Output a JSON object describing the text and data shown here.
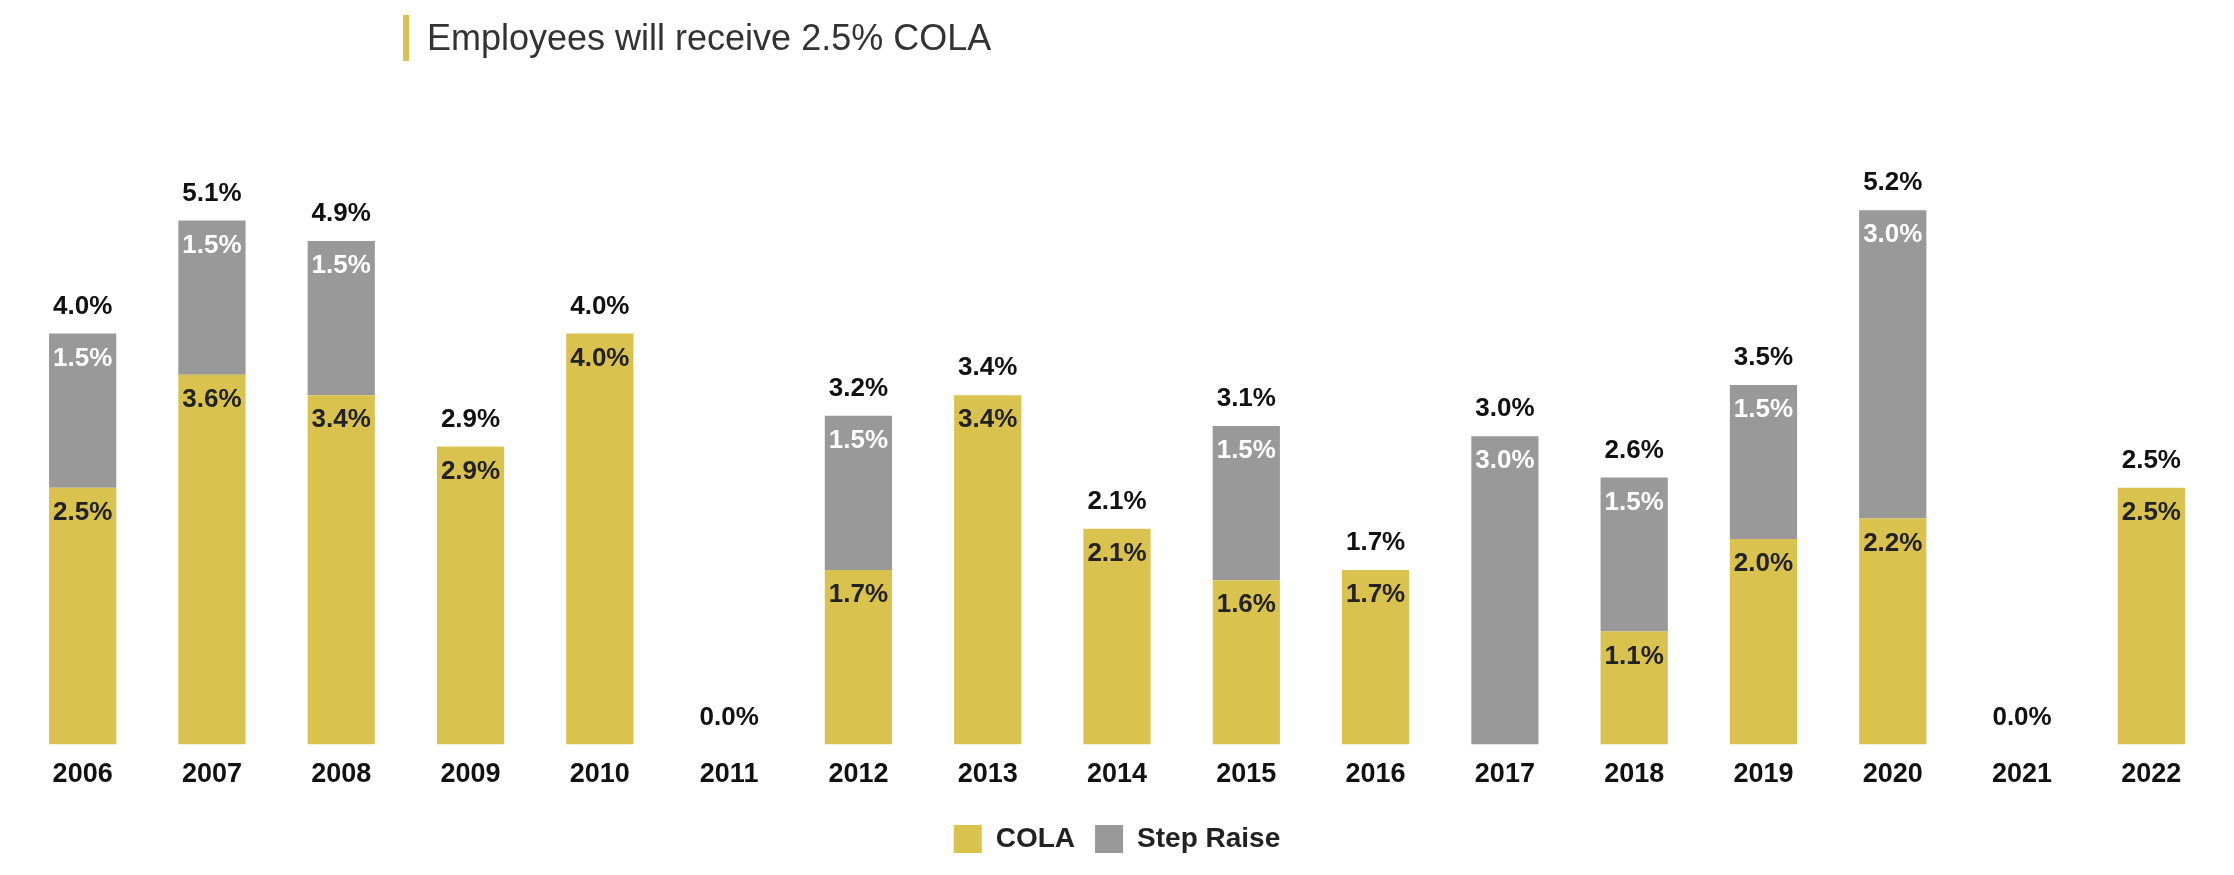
{
  "chart_data": {
    "type": "bar",
    "title": "Employees will receive 2.5% COLA",
    "stacked": true,
    "tick_labels": "x",
    "grid": false,
    "legend": "bottom",
    "categories": [
      "2006",
      "2007",
      "2008",
      "2009",
      "2010",
      "2011",
      "2012",
      "2013",
      "2014",
      "2015",
      "2016",
      "2017",
      "2018",
      "2019",
      "2020",
      "2021",
      "2022"
    ],
    "series": [
      {
        "name": "COLA",
        "color": "#dac24f",
        "values": [
          2.5,
          3.6,
          3.4,
          2.9,
          4.0,
          0,
          1.7,
          3.4,
          2.1,
          1.6,
          1.7,
          0,
          1.1,
          2.0,
          2.2,
          0,
          2.5
        ],
        "value_labels": [
          "2.5%",
          "3.6%",
          "3.4%",
          "2.9%",
          "4.0%",
          null,
          "1.7%",
          "3.4%",
          "2.1%",
          "1.6%",
          "1.7%",
          null,
          "1.1%",
          "2.0%",
          "2.2%",
          null,
          "2.5%"
        ]
      },
      {
        "name": "Step Raise",
        "color": "#999999",
        "values": [
          1.5,
          1.5,
          1.5,
          0,
          0,
          0,
          1.5,
          0,
          0,
          1.5,
          0,
          3.0,
          1.5,
          1.5,
          3.0,
          0,
          0
        ],
        "value_labels": [
          "1.5%",
          "1.5%",
          "1.5%",
          null,
          null,
          null,
          "1.5%",
          null,
          null,
          "1.5%",
          null,
          "3.0%",
          "1.5%",
          "1.5%",
          "3.0%",
          null,
          null
        ]
      }
    ],
    "totals": [
      "4.0%",
      "5.1%",
      "4.9%",
      "2.9%",
      "4.0%",
      "0.0%",
      "3.2%",
      "3.4%",
      "2.1%",
      "3.1%",
      "1.7%",
      "3.0%",
      "2.6%",
      "3.5%",
      "5.2%",
      "0.0%",
      "2.5%"
    ]
  }
}
